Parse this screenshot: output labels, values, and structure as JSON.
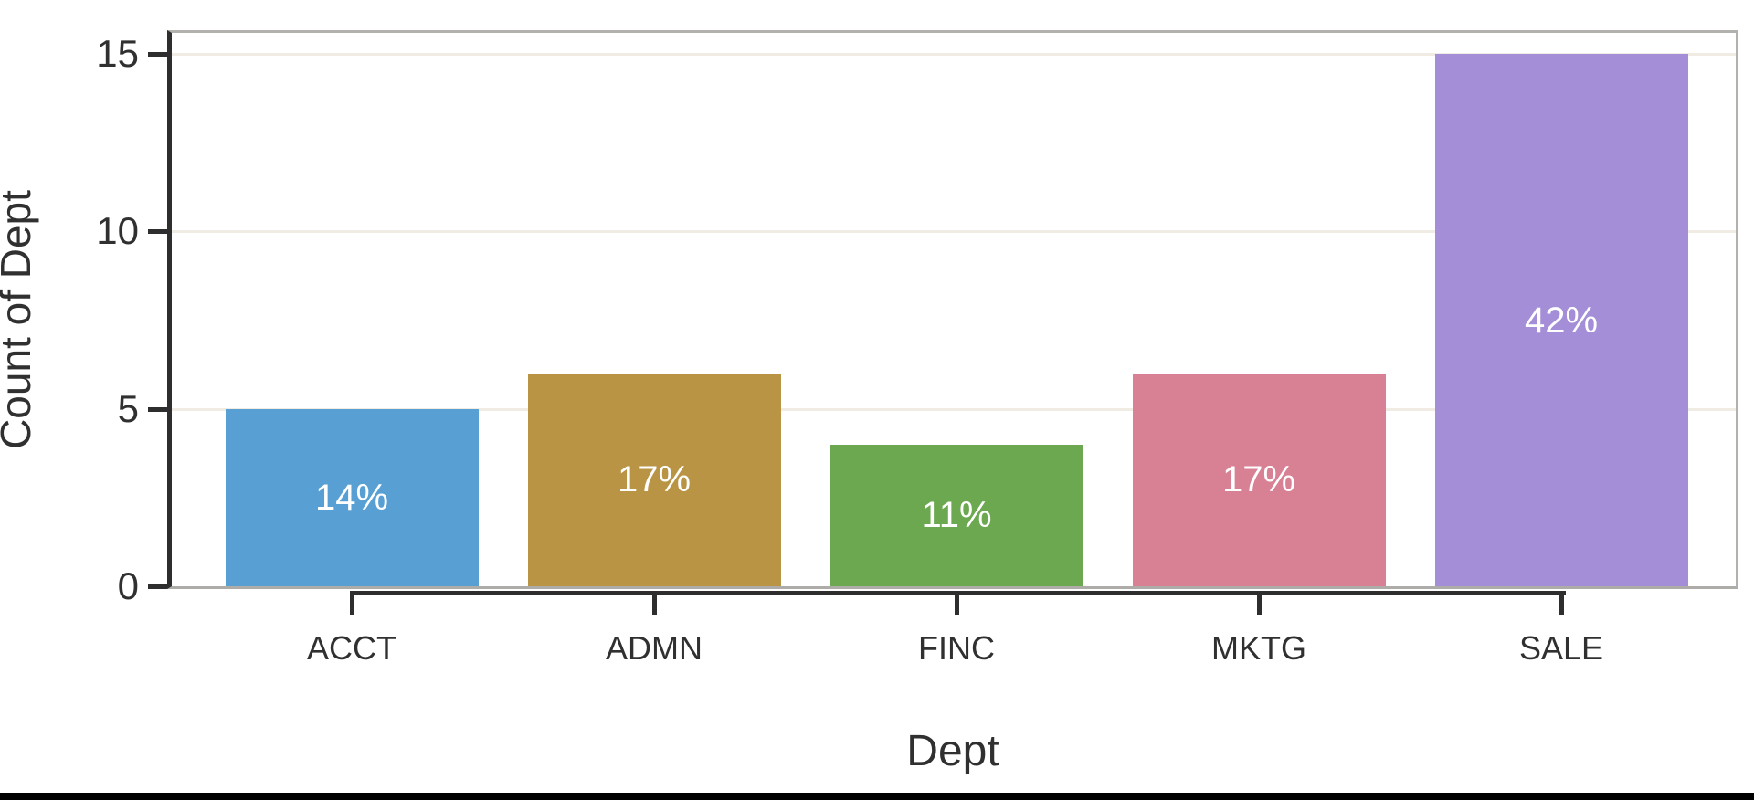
{
  "chart_data": {
    "type": "bar",
    "title": "",
    "categories": [
      "ACCT",
      "ADMN",
      "FINC",
      "MKTG",
      "SALE"
    ],
    "values": [
      5,
      6,
      4,
      6,
      15
    ],
    "bar_labels": [
      "14%",
      "17%",
      "11%",
      "17%",
      "42%"
    ],
    "bar_colors": [
      "#58a0d4",
      "#b99445",
      "#6ca850",
      "#d88094",
      "#a38ed7"
    ],
    "bar_label_color": "#ffffff",
    "xlabel": "Dept",
    "ylabel": "Count of Dept",
    "yticks": [
      0,
      5,
      10,
      15
    ],
    "ylim": [
      0,
      15.8
    ],
    "grid": "horizontal",
    "gridline_color": "#f0ece3",
    "axis_line_color": "#2e2e2e",
    "text_color": "#303030",
    "legend": "none"
  }
}
